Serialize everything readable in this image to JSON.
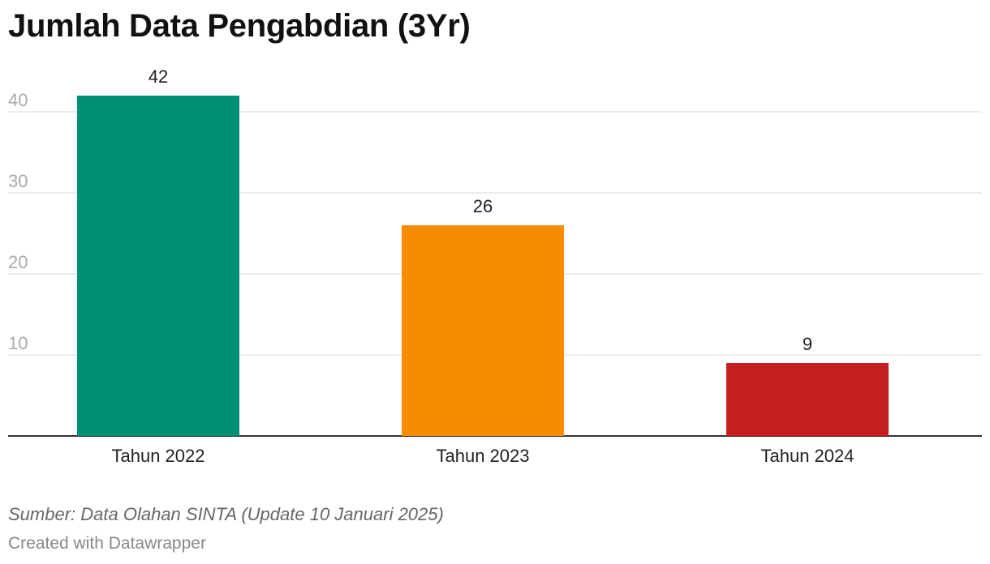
{
  "chart_data": {
    "type": "bar",
    "title": "Jumlah Data Pengabdian (3Yr)",
    "categories": [
      "Tahun 2022",
      "Tahun 2023",
      "Tahun 2024"
    ],
    "values": [
      42,
      26,
      9
    ],
    "colors": [
      "#008f73",
      "#f78c00",
      "#c71f1f"
    ],
    "ylim": [
      0,
      42
    ],
    "yticks": [
      10,
      20,
      30,
      40
    ],
    "xlabel": "",
    "ylabel": "",
    "grid": true,
    "legend": "none"
  },
  "footer": {
    "source": "Sumber: Data Olahan SINTA (Update 10 Januari 2025)",
    "credit": "Created with Datawrapper"
  },
  "colors": {
    "gridline": "#e5e5e5",
    "baseline": "#333333"
  }
}
